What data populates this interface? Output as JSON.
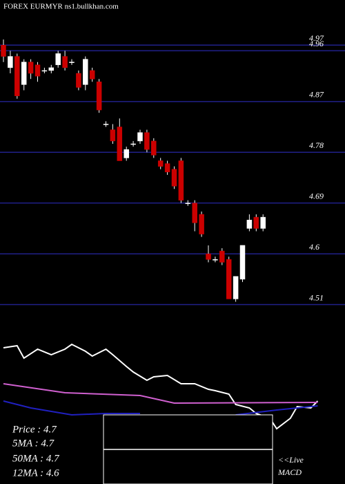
{
  "chart_data": {
    "type": "candlestick",
    "title": "FOREX  EURMYR ns1.bullkhan.com",
    "ylim": [
      4.48,
      5.05
    ],
    "yticks": [
      4.97,
      4.96,
      4.87,
      4.78,
      4.69,
      4.6,
      4.51
    ],
    "grid": true,
    "up_color": "#ffffff",
    "down_color": "#cc0000",
    "open": [
      4.97,
      4.93,
      4.95,
      4.9,
      4.94,
      4.935,
      4.925,
      4.925,
      4.935,
      4.95,
      4.94,
      4.92,
      4.9,
      4.925,
      4.905,
      4.83,
      4.82,
      4.825,
      4.77,
      4.795,
      4.8,
      4.815,
      4.8,
      4.765,
      4.76,
      4.75,
      4.765,
      4.69,
      4.69,
      4.67,
      4.6,
      4.59,
      4.605,
      4.59,
      4.52,
      4.555,
      4.645,
      4.665,
      4.645
    ],
    "high": [
      4.98,
      4.96,
      4.955,
      4.945,
      4.945,
      4.94,
      4.93,
      4.935,
      4.96,
      4.96,
      4.945,
      4.925,
      4.95,
      4.93,
      4.91,
      4.835,
      4.83,
      4.84,
      4.79,
      4.8,
      4.82,
      4.82,
      4.805,
      4.77,
      4.765,
      4.755,
      4.77,
      4.695,
      4.695,
      4.675,
      4.615,
      4.595,
      4.61,
      4.595,
      4.56,
      4.615,
      4.67,
      4.67,
      4.67
    ],
    "low": [
      4.94,
      4.92,
      4.875,
      4.89,
      4.91,
      4.905,
      4.92,
      4.92,
      4.93,
      4.925,
      4.935,
      4.89,
      4.89,
      4.905,
      4.85,
      4.825,
      4.795,
      4.765,
      4.765,
      4.79,
      4.795,
      4.78,
      4.77,
      4.75,
      4.74,
      4.715,
      4.69,
      4.685,
      4.64,
      4.63,
      4.585,
      4.585,
      4.58,
      4.52,
      4.515,
      4.55,
      4.64,
      4.64,
      4.64
    ],
    "close": [
      4.95,
      4.95,
      4.88,
      4.94,
      4.92,
      4.915,
      4.925,
      4.93,
      4.955,
      4.93,
      4.94,
      4.895,
      4.945,
      4.91,
      4.855,
      4.83,
      4.8,
      4.765,
      4.785,
      4.795,
      4.815,
      4.785,
      4.775,
      4.755,
      4.745,
      4.72,
      4.695,
      4.69,
      4.655,
      4.635,
      4.59,
      4.59,
      4.585,
      4.52,
      4.56,
      4.615,
      4.66,
      4.645,
      4.665
    ],
    "panel2": {
      "ylim": [
        0,
        130
      ],
      "series": [
        {
          "color": "#ffffff",
          "x": [
            0,
            2,
            3,
            5,
            7,
            9,
            10,
            12,
            13,
            15,
            16,
            18,
            19,
            21,
            22,
            24,
            26,
            28,
            30,
            31,
            33,
            34,
            36,
            37,
            39,
            40,
            42,
            43,
            45,
            46
          ],
          "values": [
            122,
            125,
            107,
            120,
            112,
            120,
            127,
            117,
            110,
            120,
            112,
            95,
            87,
            75,
            80,
            82,
            70,
            70,
            62,
            60,
            55,
            40,
            35,
            27,
            20,
            5,
            20,
            37,
            35,
            45
          ]
        },
        {
          "color": "#d060d0",
          "x": [
            0,
            9,
            20,
            25,
            46
          ],
          "values": [
            70,
            57,
            53,
            42,
            43
          ]
        },
        {
          "color": "#2020c0",
          "x": [
            0,
            4,
            10,
            15,
            20,
            27,
            34,
            40,
            46
          ],
          "values": [
            45,
            35,
            25,
            27,
            27,
            null,
            25,
            32,
            38
          ]
        }
      ]
    },
    "info": [
      "Price : 4.7",
      "5MA : 4.7",
      "50MA : 4.7",
      "12MA : 4.6"
    ],
    "live": "<<Live",
    "macd": "MACD"
  }
}
